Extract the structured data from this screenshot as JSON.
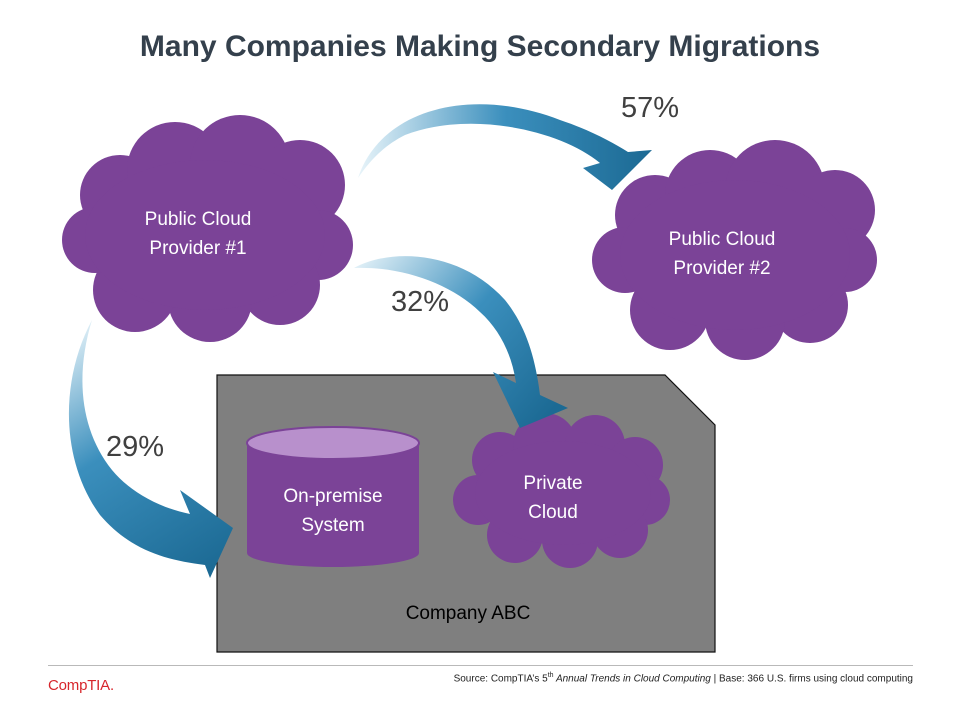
{
  "title": "Many Companies Making Secondary Migrations",
  "nodes": {
    "cloud1": {
      "line1": "Public Cloud",
      "line2": "Provider #1"
    },
    "cloud2": {
      "line1": "Public Cloud",
      "line2": "Provider #2"
    },
    "on_premise": {
      "line1": "On-premise",
      "line2": "System"
    },
    "private_cloud": {
      "line1": "Private",
      "line2": "Cloud"
    },
    "company": {
      "label": "Company ABC"
    }
  },
  "flows": [
    {
      "from": "Public Cloud Provider #1",
      "to": "Public Cloud Provider #2",
      "percent": "57%"
    },
    {
      "from": "Public Cloud Provider #1",
      "to": "Private Cloud",
      "percent": "32%"
    },
    {
      "from": "Public Cloud Provider #1",
      "to": "On-premise System",
      "percent": "29%"
    }
  ],
  "footer": {
    "logo": "CompTIA.",
    "source_prefix": "Source: CompTIA’s 5",
    "source_sup": "th",
    "source_title": " Annual Trends in Cloud Computing",
    "source_suffix": " | Base: 366 U.S. firms using cloud computing"
  },
  "colors": {
    "cloud": "#7b4397",
    "cylinder_top": "#b890cc",
    "arrow_dark": "#1f6f98",
    "arrow_light": "#d9ecf5",
    "company_box": "#7f7f7f",
    "title": "#34404c",
    "logo": "#d7262c"
  }
}
